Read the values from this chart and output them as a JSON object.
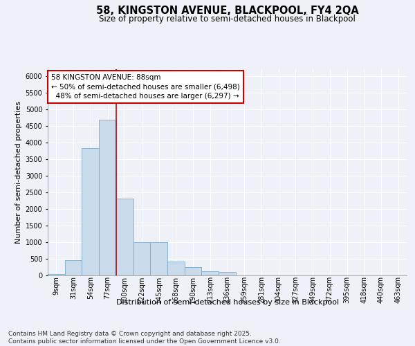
{
  "title_line1": "58, KINGSTON AVENUE, BLACKPOOL, FY4 2QA",
  "title_line2": "Size of property relative to semi-detached houses in Blackpool",
  "xlabel": "Distribution of semi-detached houses by size in Blackpool",
  "ylabel": "Number of semi-detached properties",
  "footnote": "Contains HM Land Registry data © Crown copyright and database right 2025.\nContains public sector information licensed under the Open Government Licence v3.0.",
  "bar_labels": [
    "9sqm",
    "31sqm",
    "54sqm",
    "77sqm",
    "100sqm",
    "122sqm",
    "145sqm",
    "168sqm",
    "190sqm",
    "213sqm",
    "236sqm",
    "259sqm",
    "281sqm",
    "304sqm",
    "327sqm",
    "349sqm",
    "372sqm",
    "395sqm",
    "418sqm",
    "440sqm",
    "463sqm"
  ],
  "bar_values": [
    30,
    440,
    3820,
    4680,
    2300,
    1000,
    1000,
    400,
    230,
    120,
    100,
    0,
    0,
    0,
    0,
    0,
    0,
    0,
    0,
    0,
    0
  ],
  "bar_color": "#c9daea",
  "bar_edge_color": "#7aaac8",
  "vline_index": 3,
  "property_label": "58 KINGSTON AVENUE: 88sqm",
  "smaller_pct": "50%",
  "smaller_count": "6,498",
  "larger_pct": "48%",
  "larger_count": "6,297",
  "vline_color": "#aa1111",
  "ylim": [
    0,
    6200
  ],
  "yticks": [
    0,
    500,
    1000,
    1500,
    2000,
    2500,
    3000,
    3500,
    4000,
    4500,
    5000,
    5500,
    6000
  ],
  "bg_color": "#eef2f8",
  "grid_color": "#ffffff",
  "title_fontsize": 10.5,
  "subtitle_fontsize": 8.5,
  "axis_label_fontsize": 8,
  "tick_fontsize": 7,
  "annotation_fontsize": 7.5,
  "footnote_fontsize": 6.5
}
